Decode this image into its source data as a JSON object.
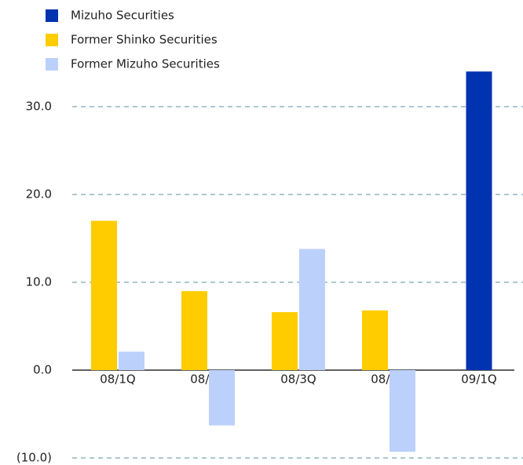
{
  "chart_data": {
    "type": "bar",
    "categories": [
      "08/1Q",
      "08/2Q",
      "08/3Q",
      "08/4Q",
      "09/1Q"
    ],
    "series": [
      {
        "name": "Mizuho Securities",
        "color": "#0033b0",
        "values": [
          null,
          null,
          null,
          null,
          34.0
        ]
      },
      {
        "name": "Former Shinko Securities",
        "color": "#ffcc00",
        "values": [
          17.0,
          9.0,
          6.6,
          6.8,
          null
        ]
      },
      {
        "name": "Former Mizuho Securities",
        "color": "#bcd0fc",
        "values": [
          2.1,
          -6.3,
          13.8,
          -9.3,
          null
        ]
      }
    ],
    "ylim": [
      -10.5,
      36
    ],
    "yticks": [
      {
        "value": -10,
        "label": "(10.0)"
      },
      {
        "value": 0,
        "label": "0.0"
      },
      {
        "value": 10,
        "label": "10.0"
      },
      {
        "value": 20,
        "label": "20.0"
      },
      {
        "value": 30,
        "label": "30.0"
      }
    ],
    "grid": true,
    "legend": "top-left"
  }
}
